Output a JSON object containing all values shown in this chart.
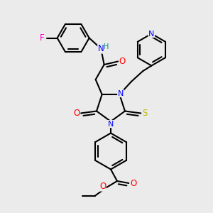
{
  "bg_color": "#ebebeb",
  "atom_colors": {
    "N": "#0000ff",
    "O": "#ff0000",
    "S": "#bbbb00",
    "F": "#ff00cc",
    "C": "#000000",
    "H": "#008080"
  },
  "bond_color": "#000000",
  "bond_width": 1.5
}
